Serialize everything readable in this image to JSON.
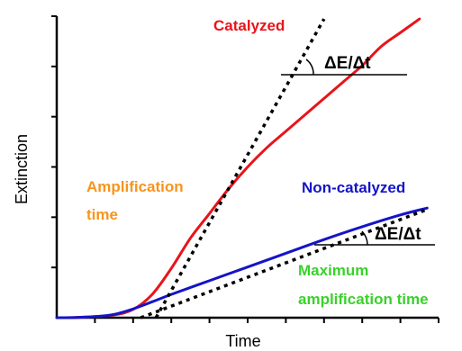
{
  "chart_data": {
    "type": "line",
    "xlabel": "Time",
    "ylabel": "Extinction",
    "x_ticks": 10,
    "y_ticks": 6,
    "series": [
      {
        "name": "Catalyzed",
        "color": "#e8141b",
        "points": [
          [
            0.0,
            0.0
          ],
          [
            0.5,
            0.01
          ],
          [
            1.0,
            0.04
          ],
          [
            1.5,
            0.1
          ],
          [
            2.0,
            0.3
          ],
          [
            2.5,
            0.85
          ],
          [
            3.0,
            1.8
          ],
          [
            3.5,
            2.9
          ],
          [
            4.0,
            3.8
          ],
          [
            4.5,
            4.7
          ],
          [
            5.0,
            5.5
          ],
          [
            5.5,
            6.2
          ],
          [
            6.0,
            6.8
          ],
          [
            6.5,
            7.4
          ],
          [
            7.0,
            8.0
          ],
          [
            7.5,
            8.6
          ],
          [
            8.0,
            9.2
          ],
          [
            8.5,
            9.9
          ],
          [
            9.0,
            10.4
          ],
          [
            9.5,
            10.9
          ]
        ]
      },
      {
        "name": "Non-catalyzed",
        "color": "#1414c8",
        "points": [
          [
            0.0,
            0.0
          ],
          [
            0.5,
            0.01
          ],
          [
            1.0,
            0.04
          ],
          [
            1.5,
            0.12
          ],
          [
            2.0,
            0.32
          ],
          [
            2.5,
            0.58
          ],
          [
            3.0,
            0.85
          ],
          [
            4.0,
            1.35
          ],
          [
            5.0,
            1.85
          ],
          [
            6.0,
            2.35
          ],
          [
            7.0,
            2.85
          ],
          [
            8.0,
            3.32
          ],
          [
            9.0,
            3.75
          ],
          [
            9.7,
            4.0
          ]
        ]
      }
    ],
    "tangents": [
      {
        "from": [
          2.6,
          0.0
        ],
        "to": [
          7.0,
          10.9
        ],
        "color": "#000000",
        "style": "dotted"
      },
      {
        "from": [
          2.2,
          0.0
        ],
        "to": [
          9.7,
          3.95
        ],
        "color": "#000000",
        "style": "dotted"
      }
    ],
    "xlim": [
      0,
      10
    ],
    "ylim": [
      0,
      11
    ],
    "annotations": {
      "catalyzed": "Catalyzed",
      "non_catalyzed": "Non-catalyzed",
      "amplification_time_1": "Amplification",
      "amplification_time_2": "time",
      "max_amp_1": "Maximum",
      "max_amp_2": "amplification time",
      "delta_upper": "ΔE/Δt",
      "delta_lower": "ΔE/Δt"
    },
    "annotation_colors": {
      "catalyzed": "#e8141b",
      "non_catalyzed": "#1414c8",
      "amplification_time": "#f7941d",
      "max_amp": "#39d12b",
      "delta": "#000000"
    }
  }
}
